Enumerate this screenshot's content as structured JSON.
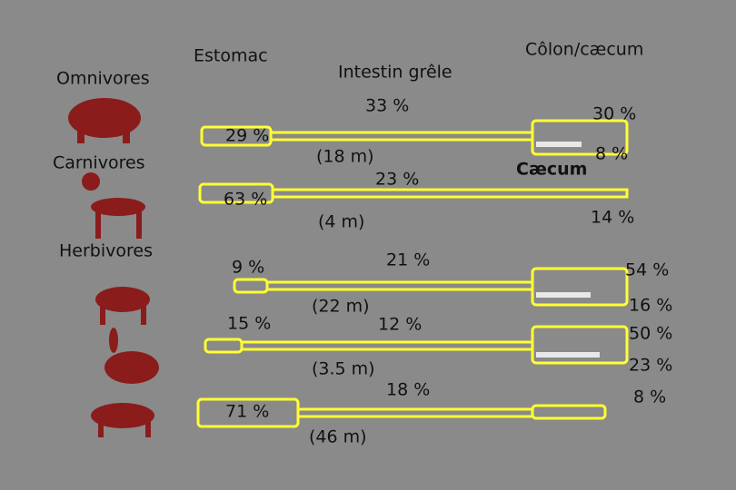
{
  "headers": {
    "groups": "Omnivores",
    "stomach": "Estomac",
    "small_intestine": "Intestin grêle",
    "colon": "Côlon/cæcum"
  },
  "groups": {
    "carnivores": "Carnivores",
    "herbivores": "Herbivores"
  },
  "omnivore": {
    "stomach": "29 %",
    "intestine": "33 %",
    "intestine_length": "(18 m)",
    "colon": "30 %"
  },
  "carnivore": {
    "stomach": "63 %",
    "intestine": "23 %",
    "intestine_length": "(4 m)",
    "caecum": "8 %",
    "caecum_label": "Cæcum",
    "colon": "14 %"
  },
  "horse": {
    "stomach": "9 %",
    "intestine": "21 %",
    "intestine_length": "(22 m)",
    "caecum": "16 %",
    "colon": "54 %"
  },
  "rabbit": {
    "stomach": "15 %",
    "intestine": "12 %",
    "intestine_length": "(3.5 m)",
    "caecum": "50 %",
    "colon": "23 %"
  },
  "cow": {
    "stomach": "71 %",
    "intestine": "18 %",
    "intestine_length": "(46 m)",
    "colon": "8 %"
  }
}
